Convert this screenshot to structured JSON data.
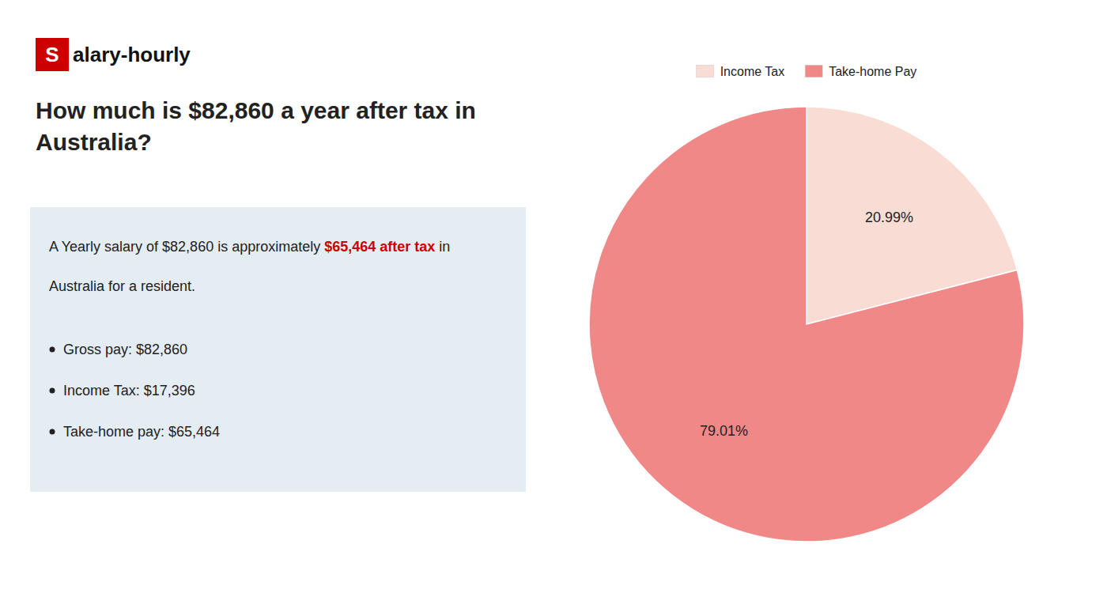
{
  "chart_data": {
    "type": "pie",
    "title": "How much is $82,860 a year after tax in Australia?",
    "categories": [
      "Income Tax",
      "Take-home Pay"
    ],
    "values": [
      20.99,
      79.01
    ],
    "value_labels": [
      "20.99%",
      "79.01%"
    ],
    "colors": [
      "#f9ddd5",
      "#f08888"
    ],
    "data_labels": true,
    "legend": "top",
    "annotations": [
      [
        {
          "text": "S",
          "color": "#cc0000"
        },
        {
          "text": "alary-hourly"
        }
      ],
      [
        {
          "text": "A Yearly salary of $82,860 is approximately "
        },
        {
          "text": "$65,464 after tax",
          "color": "#cc0000"
        },
        {
          "text": " in"
        }
      ],
      [
        {
          "text": "Australia for a resident."
        }
      ],
      [
        {
          "text": "Gross pay: $82,860"
        }
      ],
      [
        {
          "text": "Income Tax: $17,396"
        }
      ],
      [
        {
          "text": "Take-home pay: $65,464"
        }
      ]
    ]
  }
}
